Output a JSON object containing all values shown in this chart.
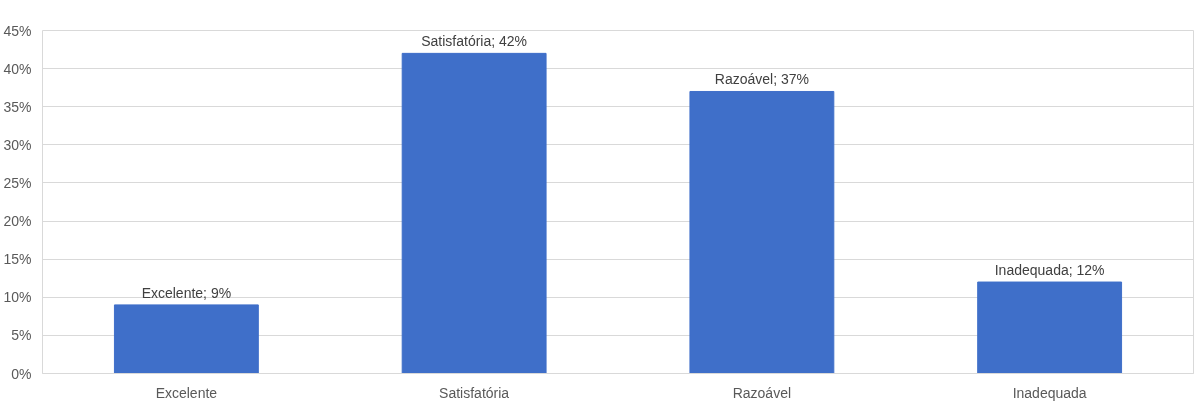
{
  "chart_data": {
    "type": "bar",
    "categories": [
      "Excelente",
      "Satisfatória",
      "Razoável",
      "Inadequada"
    ],
    "values": [
      9,
      42,
      37,
      12
    ],
    "value_labels": [
      "Excelente; 9%",
      "Satisfatória; 42%",
      "Razoável; 37%",
      "Inadequada; 12%"
    ],
    "color": "#3f6fc9",
    "ylim": [
      0,
      45
    ],
    "yticks": [
      {
        "value": 0,
        "label": "0%"
      },
      {
        "value": 5,
        "label": "5%"
      },
      {
        "value": 10,
        "label": "10%"
      },
      {
        "value": 15,
        "label": "15%"
      },
      {
        "value": 20,
        "label": "20%"
      },
      {
        "value": 25,
        "label": "25%"
      },
      {
        "value": 30,
        "label": "30%"
      },
      {
        "value": 35,
        "label": "35%"
      },
      {
        "value": 40,
        "label": "40%"
      },
      {
        "value": 45,
        "label": "45%"
      }
    ],
    "grid": "y"
  }
}
